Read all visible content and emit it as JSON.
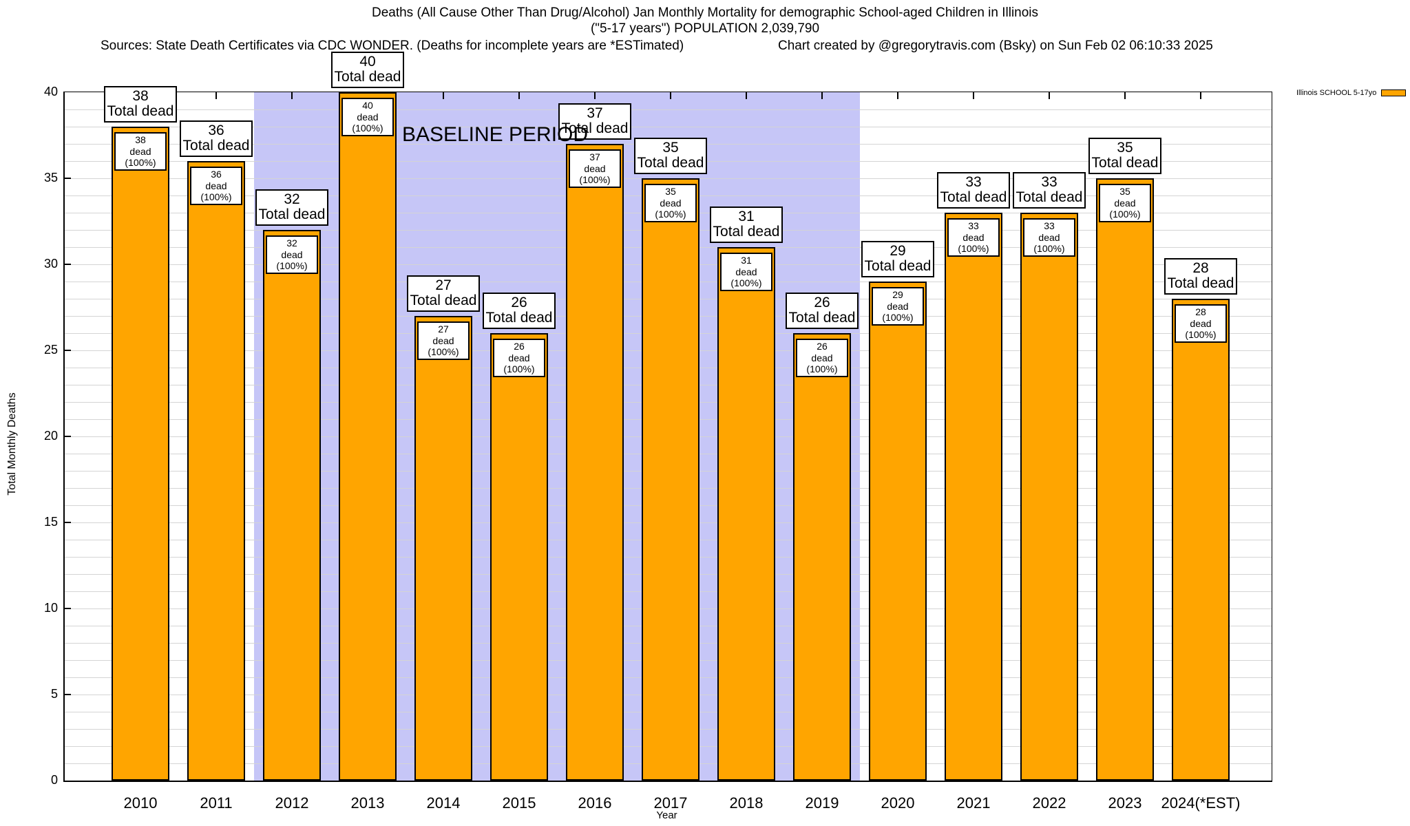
{
  "header": {
    "title_line1": "Deaths (All Cause Other Than Drug/Alcohol) Jan Monthly Mortality for demographic School-aged Children in Illinois",
    "title_line2": "(\"5-17 years\") POPULATION 2,039,790",
    "sources": "Sources: State Death Certificates via CDC WONDER. (Deaths for incomplete years are *ESTimated)",
    "credit": "Chart created by @gregorytravis.com (Bsky) on Sun Feb 02 06:10:33 2025"
  },
  "legend": {
    "label": "Illinois SCHOOL 5-17yo",
    "color": "#FFA500"
  },
  "chart_data": {
    "type": "bar",
    "title": "Deaths (All Cause Other Than Drug/Alcohol) Jan Monthly Mortality for demographic School-aged Children in Illinois (\"5-17 years\") POPULATION 2,039,790",
    "xlabel": "Year",
    "ylabel": "Total Monthly Deaths",
    "ylim": [
      0,
      40
    ],
    "ytick_step": 5,
    "yminor_step": 1,
    "grid": true,
    "legend_position": "top-right",
    "categories": [
      "2010",
      "2011",
      "2012",
      "2013",
      "2014",
      "2015",
      "2016",
      "2017",
      "2018",
      "2019",
      "2020",
      "2021",
      "2022",
      "2023",
      "2024(*EST)"
    ],
    "series": [
      {
        "name": "Illinois SCHOOL 5-17yo",
        "values": [
          38,
          36,
          32,
          40,
          27,
          26,
          37,
          35,
          31,
          26,
          29,
          33,
          33,
          35,
          28
        ]
      }
    ],
    "bar_color": "#FFA500",
    "bar_top_box_line2": "Total dead",
    "bar_inner_box_line2": "dead (100%)",
    "baseline": {
      "label": "BASELINE PERIOD",
      "start_category": "2012",
      "end_category": "2019",
      "color": "#c6c6f7"
    },
    "gridline_color": "#d4d4d4"
  }
}
